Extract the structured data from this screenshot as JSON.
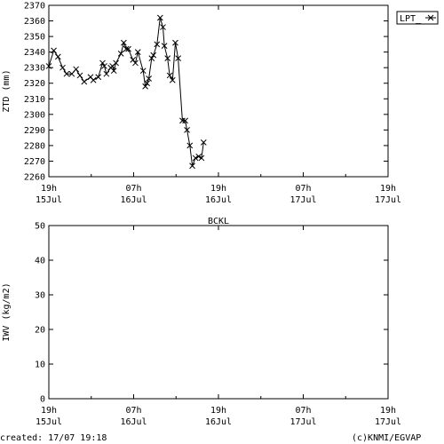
{
  "footer": {
    "created": "created: 17/07 19:18",
    "credit": "(c)KNMI/EGVAP"
  },
  "chart_data": [
    {
      "type": "line",
      "ylabel": "ZTD (mm)",
      "ylim": [
        2260,
        2370
      ],
      "yticks": [
        2260,
        2270,
        2280,
        2290,
        2300,
        2310,
        2320,
        2330,
        2340,
        2350,
        2360,
        2370
      ],
      "xlim_hours": [
        19,
        115
      ],
      "xtick_labels": [
        [
          "19h",
          "15Jul"
        ],
        [
          "07h",
          "16Jul"
        ],
        [
          "19h",
          "16Jul"
        ],
        [
          "07h",
          "17Jul"
        ],
        [
          "19h",
          "17Jul"
        ]
      ],
      "grid": false,
      "legend": "top-right",
      "series": [
        {
          "name": "LPT_",
          "color": "#000000",
          "marker": "x",
          "x": [
            19.0,
            20.4,
            21.6,
            22.9,
            24.0,
            25.5,
            26.7,
            27.8,
            29.0,
            30.8,
            31.6,
            33.0,
            34.2,
            34.7,
            35.3,
            36.5,
            37.0,
            37.4,
            38.0,
            39.4,
            40.2,
            40.9,
            41.5,
            42.8,
            43.5,
            44.2,
            45.7,
            46.3,
            46.8,
            47.3,
            48.1,
            48.6,
            49.6,
            50.5,
            51.3,
            51.7,
            52.6,
            53.2,
            54.0,
            54.8,
            55.6,
            56.8,
            57.6,
            58.1,
            58.9,
            59.6,
            60.5,
            61.4,
            62.2,
            62.8
          ],
          "y": [
            2331,
            2341,
            2337,
            2330,
            2326,
            2326,
            2329,
            2325,
            2321,
            2324,
            2322,
            2324,
            2333,
            2331,
            2326,
            2330,
            2331,
            2328,
            2333,
            2339,
            2346,
            2342,
            2342,
            2335,
            2333,
            2340,
            2328,
            2318,
            2320,
            2323,
            2336,
            2338,
            2345,
            2362,
            2356,
            2344,
            2336,
            2325,
            2322,
            2346,
            2336,
            2296,
            2296,
            2290,
            2280,
            2267,
            2272,
            2273,
            2272,
            2282
          ]
        }
      ]
    },
    {
      "type": "line",
      "title": "BCKL",
      "ylabel": "IWV (kg/m2)",
      "ylim": [
        0,
        50
      ],
      "yticks": [
        0,
        10,
        20,
        30,
        40,
        50
      ],
      "xlim_hours": [
        19,
        115
      ],
      "xtick_labels": [
        [
          "19h",
          "15Jul"
        ],
        [
          "07h",
          "16Jul"
        ],
        [
          "19h",
          "16Jul"
        ],
        [
          "07h",
          "17Jul"
        ],
        [
          "19h",
          "17Jul"
        ]
      ],
      "grid": false,
      "series": []
    }
  ]
}
